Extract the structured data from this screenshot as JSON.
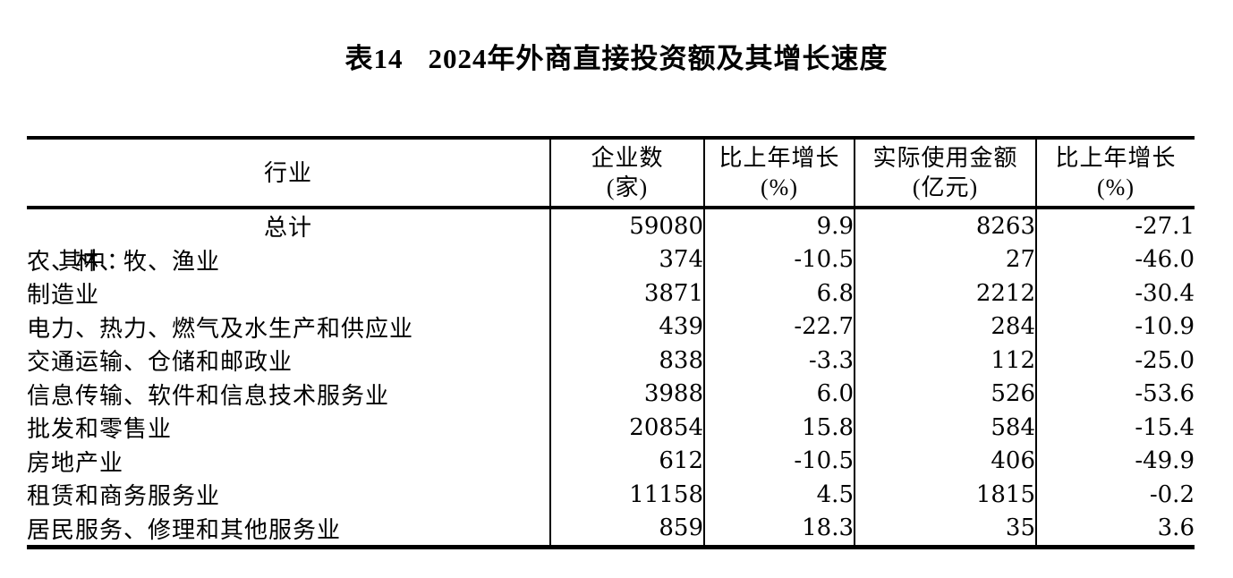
{
  "page": {
    "background": "#ffffff",
    "text_color": "#000000"
  },
  "title": {
    "tag": "表14",
    "text": "2024年外商直接投资额及其增长速度"
  },
  "table": {
    "header": {
      "industry": "行业",
      "cols": [
        {
          "line1": "企业数",
          "line2": "(家)"
        },
        {
          "line1": "比上年增长",
          "line2": "(%)"
        },
        {
          "line1": "实际使用金额",
          "line2": "(亿元)"
        },
        {
          "line1": "比上年增长",
          "line2": "(%)"
        }
      ]
    },
    "rows": [
      {
        "prefix": "",
        "industry": "总计",
        "enterprises": "59080",
        "enterprises_growth": "9.9",
        "amount": "8263",
        "amount_growth": "-27.1"
      },
      {
        "prefix": "其中：",
        "industry": "农、林、牧、渔业",
        "enterprises": "374",
        "enterprises_growth": "-10.5",
        "amount": "27",
        "amount_growth": "-46.0"
      },
      {
        "prefix": "",
        "industry": "制造业",
        "enterprises": "3871",
        "enterprises_growth": "6.8",
        "amount": "2212",
        "amount_growth": "-30.4"
      },
      {
        "prefix": "",
        "industry": "电力、热力、燃气及水生产和供应业",
        "enterprises": "439",
        "enterprises_growth": "-22.7",
        "amount": "284",
        "amount_growth": "-10.9"
      },
      {
        "prefix": "",
        "industry": "交通运输、仓储和邮政业",
        "enterprises": "838",
        "enterprises_growth": "-3.3",
        "amount": "112",
        "amount_growth": "-25.0"
      },
      {
        "prefix": "",
        "industry": "信息传输、软件和信息技术服务业",
        "enterprises": "3988",
        "enterprises_growth": "6.0",
        "amount": "526",
        "amount_growth": "-53.6"
      },
      {
        "prefix": "",
        "industry": "批发和零售业",
        "enterprises": "20854",
        "enterprises_growth": "15.8",
        "amount": "584",
        "amount_growth": "-15.4"
      },
      {
        "prefix": "",
        "industry": "房地产业",
        "enterprises": "612",
        "enterprises_growth": "-10.5",
        "amount": "406",
        "amount_growth": "-49.9"
      },
      {
        "prefix": "",
        "industry": "租赁和商务服务业",
        "enterprises": "11158",
        "enterprises_growth": "4.5",
        "amount": "1815",
        "amount_growth": "-0.2"
      },
      {
        "prefix": "",
        "industry": "居民服务、修理和其他服务业",
        "enterprises": "859",
        "enterprises_growth": "18.3",
        "amount": "35",
        "amount_growth": "3.6"
      }
    ]
  }
}
